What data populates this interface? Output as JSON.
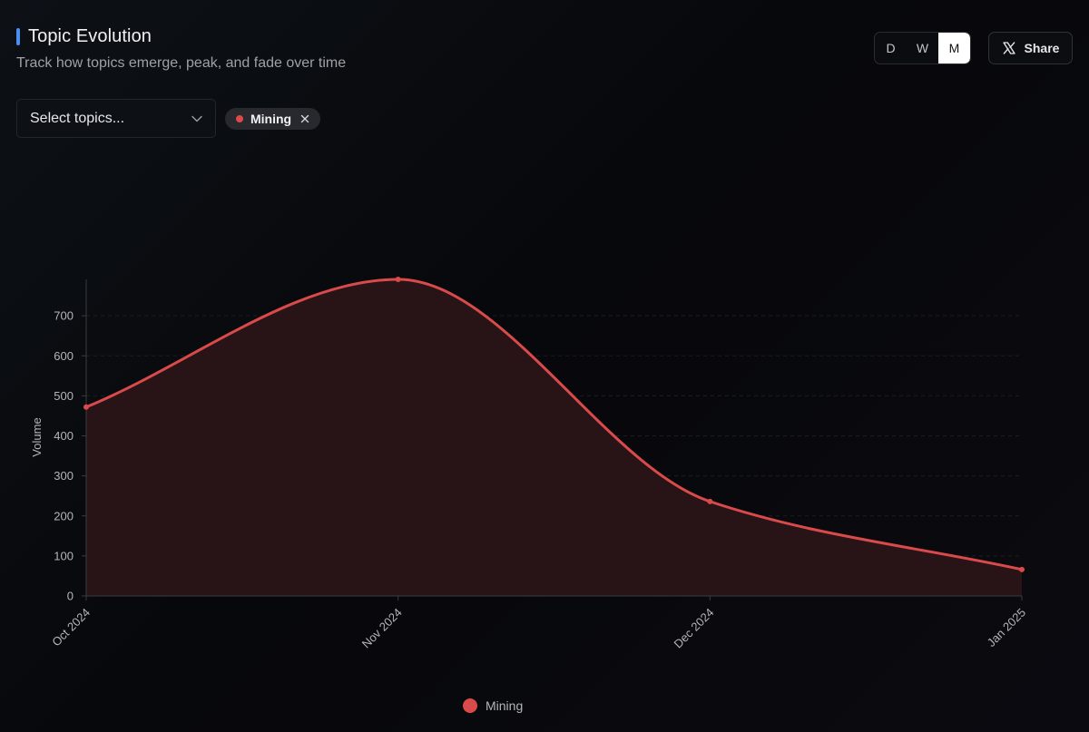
{
  "header": {
    "title": "Topic Evolution",
    "subtitle": "Track how topics emerge, peak, and fade over time"
  },
  "range_buttons": [
    {
      "label": "D",
      "active": false
    },
    {
      "label": "W",
      "active": false
    },
    {
      "label": "M",
      "active": true
    }
  ],
  "share": {
    "label": "Share",
    "icon": "x-logo-icon"
  },
  "topic_select": {
    "placeholder": "Select topics...",
    "icon": "chevron-down-icon"
  },
  "selected_topics": [
    {
      "label": "Mining",
      "color": "#e04848"
    }
  ],
  "colors": {
    "accent_bar": "#4a8ef0",
    "series_line": "#d94a4a",
    "series_fill": "#2a1418",
    "axis": "#3a3c42",
    "grid": "#2a2b31",
    "tick_text": "#b4b6bb"
  },
  "chart_data": {
    "type": "area",
    "x": [
      "Oct 2024",
      "Nov 2024",
      "Dec 2024",
      "Jan 2025"
    ],
    "series": [
      {
        "name": "Mining",
        "values": [
          472,
          791,
          236,
          66
        ],
        "color": "#d94a4a"
      }
    ],
    "ylabel": "Volume",
    "xlabel": "",
    "yticks": [
      0,
      100,
      200,
      300,
      400,
      500,
      600,
      700
    ],
    "ylim": [
      0,
      790
    ],
    "grid": "horizontal dashed",
    "legend": "bottom-center"
  }
}
